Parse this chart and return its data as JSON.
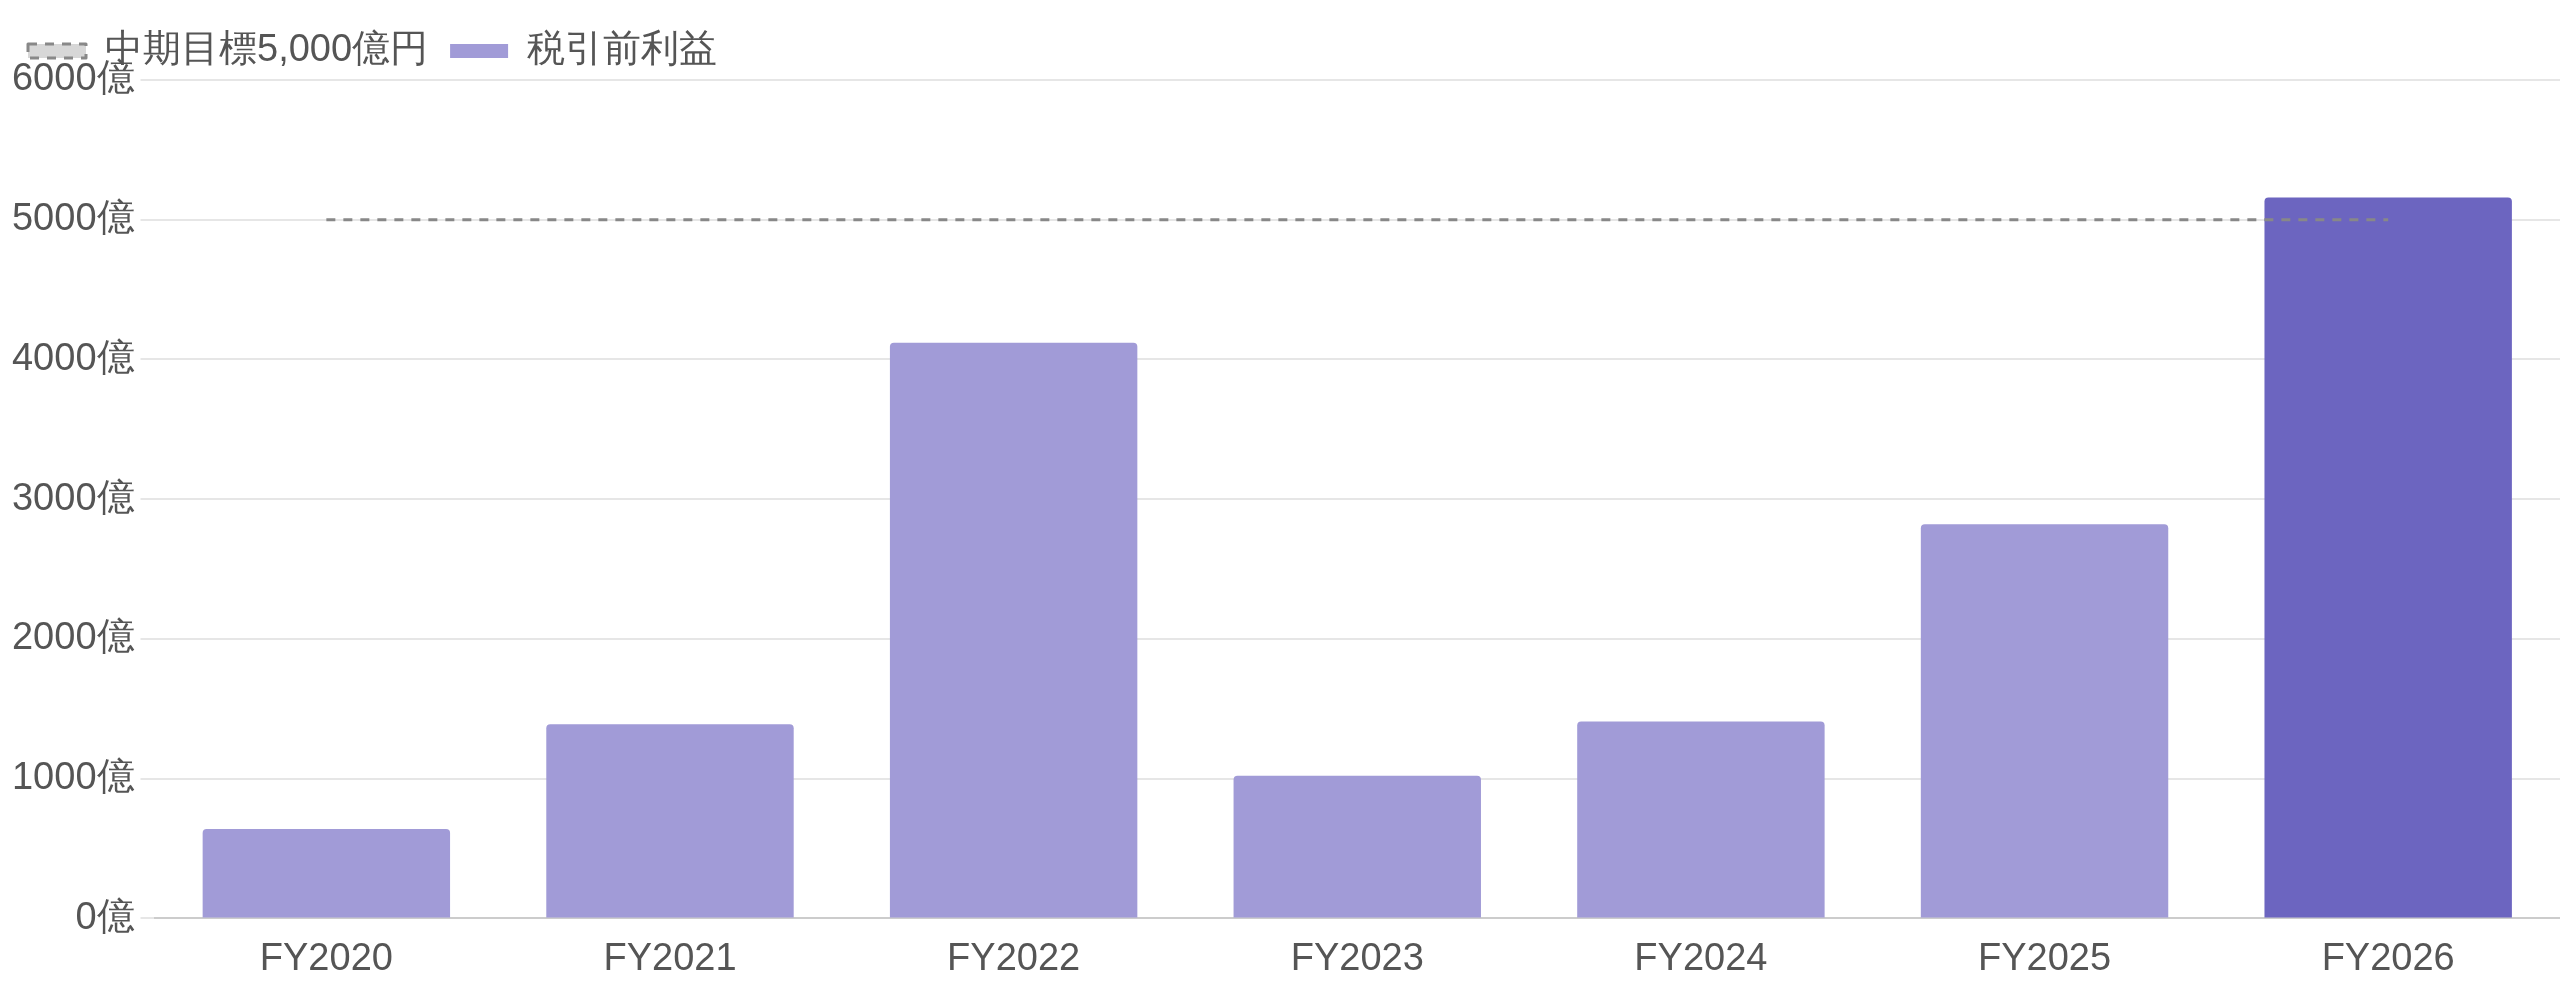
{
  "chart_data": {
    "type": "bar",
    "categories": [
      "FY2020",
      "FY2021",
      "FY2022",
      "FY2023",
      "FY2024",
      "FY2025",
      "FY2026"
    ],
    "series": [
      {
        "name": "税引前利益",
        "color": "#a19bd7",
        "colors": [
          "#a19bd7",
          "#a19bd7",
          "#a19bd7",
          "#a19bd7",
          "#a19bd7",
          "#a19bd7",
          "#6c65c0"
        ],
        "values": [
          640,
          1390,
          4120,
          1020,
          1410,
          2820,
          5160
        ]
      }
    ],
    "ylim": [
      0,
      6000
    ],
    "yticks": [
      {
        "value": 0,
        "label": "0億"
      },
      {
        "value": 1000,
        "label": "1000億"
      },
      {
        "value": 2000,
        "label": "2000億"
      },
      {
        "value": 3000,
        "label": "3000億"
      },
      {
        "value": 4000,
        "label": "4000億"
      },
      {
        "value": 5000,
        "label": "5000億"
      },
      {
        "value": 6000,
        "label": "6000億"
      }
    ],
    "grid": "y",
    "legend": "top left",
    "ref_lines": [
      {
        "axis": "y",
        "value": 5000,
        "label": "中期目標5,000億円",
        "color": "#888888",
        "line_style": "dashed"
      }
    ]
  }
}
